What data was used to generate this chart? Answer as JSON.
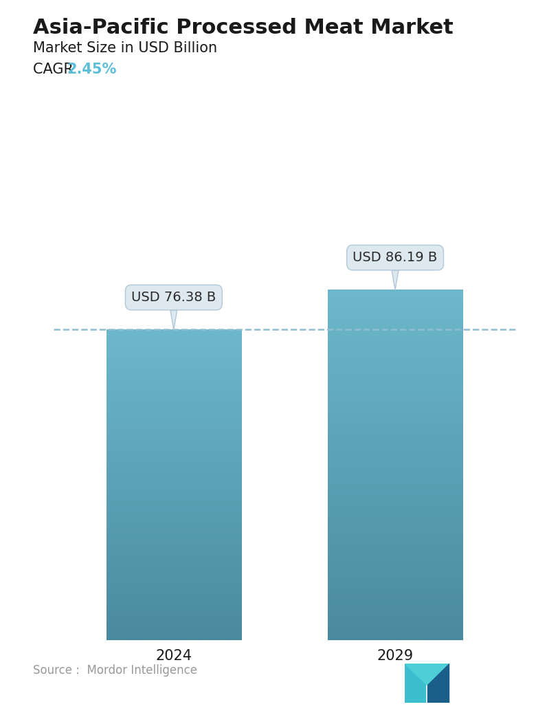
{
  "title": "Asia-Pacific Processed Meat Market",
  "subtitle": "Market Size in USD Billion",
  "cagr_label": "CAGR ",
  "cagr_value": "2.45%",
  "cagr_color": "#5bbfd6",
  "categories": [
    "2024",
    "2029"
  ],
  "values": [
    76.38,
    86.19
  ],
  "bar_labels": [
    "USD 76.38 B",
    "USD 86.19 B"
  ],
  "bar_top_color": "#6db8cc",
  "bar_bottom_color": "#4a8a9e",
  "dashed_line_color": "#90bdd0",
  "dashed_line_value": 76.38,
  "callout_bg_color": "#dde8ef",
  "callout_text_color": "#2a2a2a",
  "source_text": "Source :  Mordor Intelligence",
  "source_color": "#999999",
  "background_color": "#ffffff",
  "title_fontsize": 22,
  "subtitle_fontsize": 15,
  "cagr_fontsize": 15,
  "label_fontsize": 14,
  "tick_fontsize": 15,
  "source_fontsize": 12,
  "ylim_max": 105,
  "bar_positions": [
    0.27,
    0.73
  ],
  "bar_width": 0.28
}
